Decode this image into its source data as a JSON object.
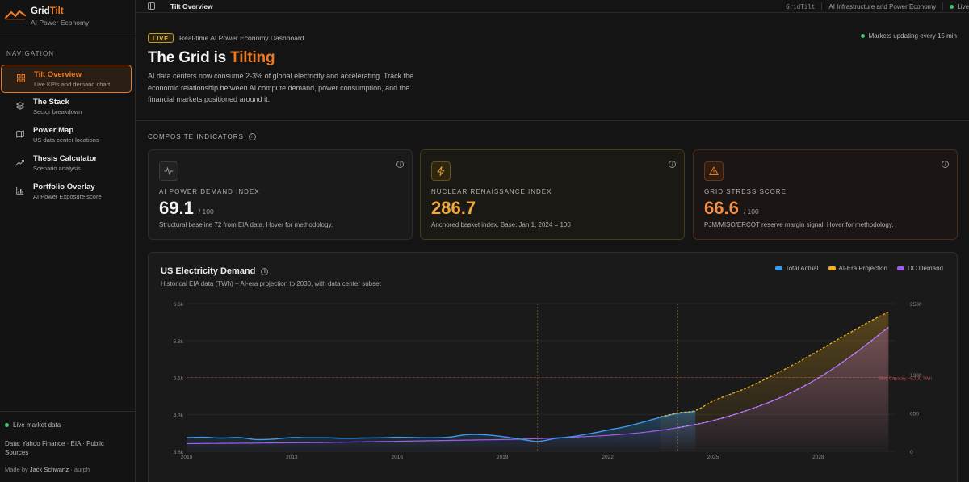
{
  "brand": {
    "name_part1": "Grid",
    "name_part2": "Tilt",
    "subtitle": "AI Power Economy"
  },
  "sidebar": {
    "heading": "NAVIGATION",
    "items": [
      {
        "title": "Tilt Overview",
        "subtitle": "Live KPIs and demand chart",
        "icon": "grid-icon",
        "active": true
      },
      {
        "title": "The Stack",
        "subtitle": "Sector breakdown",
        "icon": "layers-icon",
        "active": false
      },
      {
        "title": "Power Map",
        "subtitle": "US data center locations",
        "icon": "map-icon",
        "active": false
      },
      {
        "title": "Thesis Calculator",
        "subtitle": "Scenario analysis",
        "icon": "trend-icon",
        "active": false
      },
      {
        "title": "Portfolio Overlay",
        "subtitle": "AI Power Exposure score",
        "icon": "bar-chart-icon",
        "active": false
      }
    ],
    "footer": {
      "live_label": "Live market data",
      "data_source": "Data: Yahoo Finance · EIA · Public Sources",
      "made_by_prefix": "Made by",
      "made_by_name": "Jack Schwartz",
      "made_by_suffix": "· aurph"
    }
  },
  "topbar": {
    "page_title": "Tilt Overview",
    "app_id": "GridTilt",
    "context": "AI Infrastructure and Power Economy",
    "status": "Live"
  },
  "hero": {
    "badge": "LIVE",
    "kicker": "Real-time AI Power Economy Dashboard",
    "status": "Markets updating every 15 min",
    "title_prefix": "The Grid is ",
    "title_accent": "Tilting",
    "description": "AI data centers now consume 2-3% of global electricity and accelerating. Track the economic relationship between AI compute demand, power consumption, and the financial markets positioned around it."
  },
  "indicators": {
    "heading": "COMPOSITE INDICATORS",
    "cards": [
      {
        "label": "AI POWER DEMAND INDEX",
        "value": "69.1",
        "unit": "/ 100",
        "note": "Structural baseline 72 from EIA data. Hover for methodology.",
        "icon": "pulse-icon"
      },
      {
        "label": "NUCLEAR RENAISSANCE INDEX",
        "value": "286.7",
        "unit": "",
        "note": "Anchored basket index. Base: Jan 1, 2024 = 100",
        "icon": "bolt-icon"
      },
      {
        "label": "GRID STRESS SCORE",
        "value": "66.6",
        "unit": "/ 100",
        "note": "PJM/MISO/ERCOT reserve margin signal. Hover for methodology.",
        "icon": "warning-icon"
      }
    ]
  },
  "colors": {
    "accent": "#ee7a23",
    "total_actual": "#3b9bf0",
    "projection": "#f0b020",
    "dc_demand": "#a35cf0",
    "capacity": "#d04040",
    "live": "#3ec46d"
  },
  "chart": {
    "title": "US Electricity Demand",
    "subtitle": "Historical EIA data (TWh) + AI-era projection to 2030, with data center subset",
    "legend": [
      "Total Actual",
      "AI-Era Projection",
      "DC Demand"
    ],
    "capacity_label": "Grid Capacity ~5,100 TWh"
  },
  "chart_data": {
    "type": "line",
    "x_ticks": [
      "2010",
      "2013",
      "2016",
      "2019",
      "2022",
      "2025",
      "2028"
    ],
    "y_left_ticks": [
      "3.6k",
      "4.3k",
      "5.1k",
      "5.8k",
      "6.6k"
    ],
    "y_left_range": [
      3600,
      6600
    ],
    "y_right_ticks": [
      "0",
      "650",
      "1300",
      "2500"
    ],
    "y_right_range": [
      0,
      2500
    ],
    "xlim": [
      2010,
      2030.2
    ],
    "reference_lines_x": [
      2020,
      2024
    ],
    "capacity_line": 5100,
    "series": [
      {
        "name": "Total Actual",
        "axis": "left",
        "x": [
          2010,
          2010.5,
          2011,
          2011.5,
          2012,
          2012.5,
          2013,
          2013.5,
          2014,
          2014.5,
          2015,
          2015.5,
          2016,
          2016.5,
          2017,
          2017.5,
          2018,
          2018.5,
          2019,
          2019.5,
          2020,
          2020.5,
          2021,
          2021.5,
          2022,
          2022.5,
          2023,
          2023.5,
          2024,
          2024.5
        ],
        "values": [
          3880,
          3885,
          3870,
          3880,
          3840,
          3850,
          3880,
          3875,
          3875,
          3865,
          3870,
          3875,
          3885,
          3880,
          3875,
          3890,
          3940,
          3935,
          3900,
          3850,
          3800,
          3860,
          3900,
          3960,
          4030,
          4100,
          4190,
          4290,
          4370,
          4410
        ]
      },
      {
        "name": "AI-Era Projection",
        "axis": "left",
        "x": [
          2023.5,
          2024,
          2024.5,
          2025,
          2025.5,
          2026,
          2026.5,
          2027,
          2027.5,
          2028,
          2028.5,
          2029,
          2029.5,
          2030
        ],
        "values": [
          4300,
          4380,
          4430,
          4620,
          4760,
          4900,
          5070,
          5250,
          5440,
          5640,
          5850,
          6050,
          6250,
          6430
        ]
      },
      {
        "name": "DC Demand",
        "axis": "right",
        "x": [
          2010,
          2011,
          2012,
          2013,
          2014,
          2015,
          2016,
          2017,
          2018,
          2019,
          2020,
          2021,
          2022,
          2023,
          2024,
          2025,
          2026,
          2027,
          2028,
          2029,
          2030
        ],
        "values": [
          130,
          135,
          140,
          145,
          150,
          160,
          170,
          180,
          190,
          200,
          215,
          240,
          270,
          320,
          400,
          520,
          700,
          930,
          1240,
          1640,
          2100
        ]
      }
    ]
  }
}
